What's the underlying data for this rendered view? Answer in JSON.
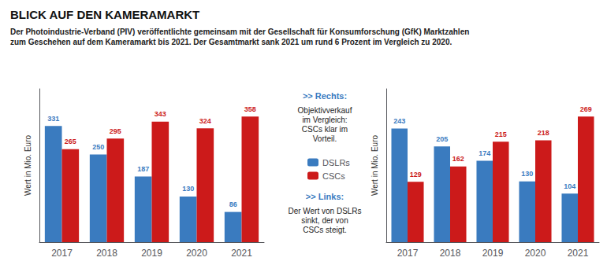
{
  "title": "BLICK AUF DEN KAMERAMARKT",
  "subtitle": "Der Photoindustrie-Verband (PIV) veröffentlichte gemeinsam mit der Gesellschaft für Konsumforschung (GfK) Marktzahlen\nzum Geschehen auf dem Kameramarkt bis 2021. Der Gesamtmarkt sank 2021 um rund 6 Prozent im Vergleich zu 2020.",
  "legend": "center",
  "annotations": [
    {
      "title": ">> Rechts:",
      "text": "Objektivverkauf\nim Vergleich:\nCSCs klar im\nVorteil."
    },
    {
      "title": ">> Links:",
      "text": "Der Wert von DSLRs\nsinkt, der von\nCSCs steigt."
    }
  ],
  "chart_data": [
    {
      "type": "bar",
      "categories": [
        "2017",
        "2018",
        "2019",
        "2020",
        "2021"
      ],
      "series": [
        {
          "name": "DSLRs",
          "color": "#3a7bbf",
          "values": [
            331,
            250,
            187,
            130,
            86
          ]
        },
        {
          "name": "CSCs",
          "color": "#cc1a1a",
          "values": [
            265,
            295,
            343,
            324,
            358
          ]
        }
      ],
      "ylabel": "Wert in Mio. Euro",
      "ylim": [
        0,
        436.76
      ],
      "data_labels": true,
      "tick_labels": "x",
      "grid": false
    },
    {
      "type": "bar",
      "categories": [
        "2017",
        "2018",
        "2019",
        "2020",
        "2021"
      ],
      "series": [
        {
          "name": "DSLRs",
          "color": "#3a7bbf",
          "values": [
            243,
            205,
            174,
            130,
            104
          ]
        },
        {
          "name": "CSCs",
          "color": "#cc1a1a",
          "values": [
            129,
            162,
            215,
            218,
            269
          ]
        }
      ],
      "ylabel": "Wert in Mio. Euro",
      "ylim": [
        0,
        328.18
      ],
      "data_labels": true,
      "tick_labels": "x",
      "grid": false
    }
  ]
}
